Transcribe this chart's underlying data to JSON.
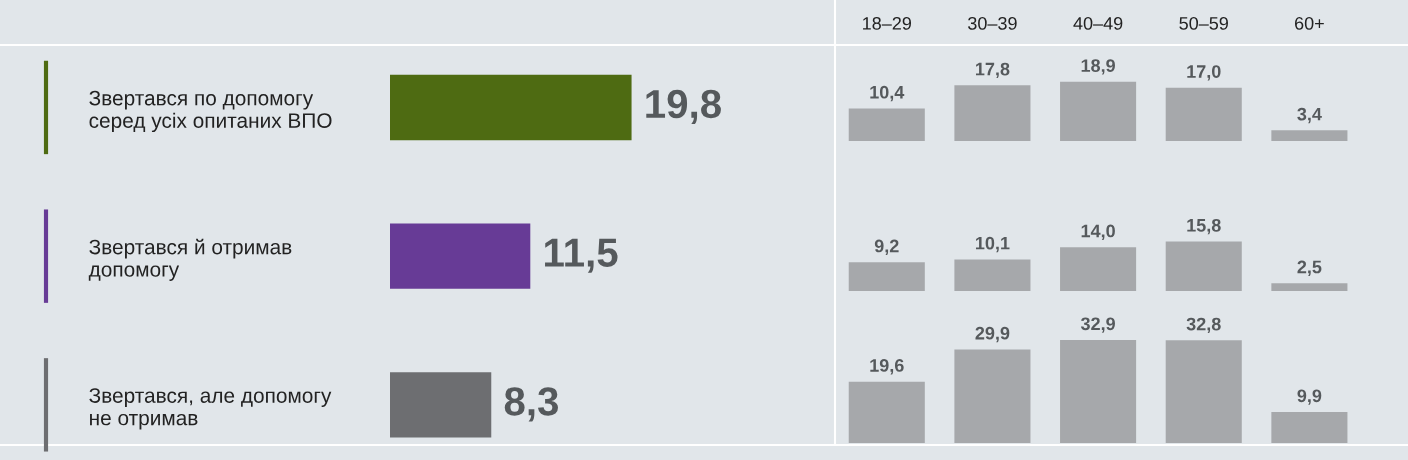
{
  "chart_data": [
    {
      "type": "bar",
      "orientation": "horizontal",
      "categories": [
        "Звертався по допомогу\nсеред усіх опитаних ВПО",
        "Звертався й отримав\nдопомогу",
        "Звертався, але допомогу\nне отримав"
      ],
      "values": [
        19.8,
        11.5,
        8.3
      ],
      "colors": [
        "#4e6b12",
        "#673b96",
        "#6d6e71"
      ],
      "value_labels": [
        "19,8",
        "11,5",
        "8,3"
      ]
    },
    {
      "type": "bar",
      "categories": [
        "18–29",
        "30–39",
        "40–49",
        "50–59",
        "60+"
      ],
      "values": [
        10.4,
        17.8,
        18.9,
        17.0,
        3.4
      ],
      "color": "#a6a8ab",
      "value_labels": [
        "10,4",
        "17,8",
        "18,9",
        "17,0",
        "3,4"
      ],
      "tick_labels": "x"
    },
    {
      "type": "bar",
      "categories": [
        null,
        null,
        null,
        null,
        null
      ],
      "values": [
        9.2,
        10.1,
        14.0,
        15.8,
        2.5
      ],
      "color": "#a6a8ab",
      "value_labels": [
        "9,2",
        "10,1",
        "14,0",
        "15,8",
        "2,5"
      ]
    },
    {
      "type": "bar",
      "categories": [
        null,
        null,
        null,
        null,
        null
      ],
      "values": [
        19.6,
        29.9,
        32.9,
        32.8,
        9.9
      ],
      "color": "#a6a8ab",
      "value_labels": [
        "19,6",
        "29,9",
        "32,9",
        "32,8",
        "9,9"
      ]
    }
  ]
}
